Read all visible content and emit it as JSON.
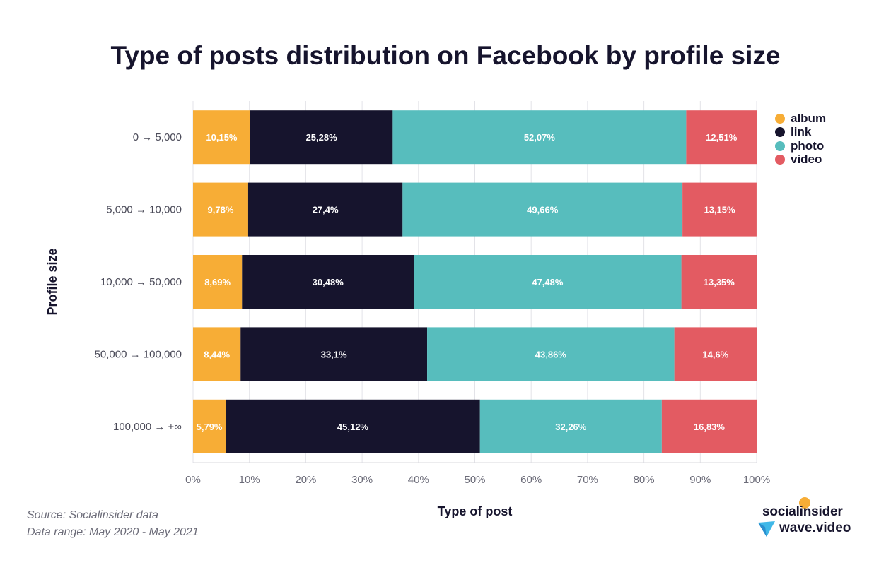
{
  "chart_data": {
    "type": "bar",
    "orientation": "horizontal",
    "stacked": true,
    "title": "Type of posts distribution on Facebook by profile size",
    "xlabel": "Type of post",
    "ylabel": "Profile size",
    "xlim": [
      0,
      100
    ],
    "x_ticks": [
      "0%",
      "10%",
      "20%",
      "30%",
      "40%",
      "50%",
      "60%",
      "70%",
      "80%",
      "90%",
      "100%"
    ],
    "categories": [
      "0 → 5,000",
      "5,000 → 10,000",
      "10,000 → 50,000",
      "50,000 → 100,000",
      "100,000 → +∞"
    ],
    "series": [
      {
        "name": "album",
        "color": "#f7ad36",
        "values": [
          10.15,
          9.78,
          8.69,
          8.44,
          5.79
        ],
        "labels": [
          "10,15%",
          "9,78%",
          "8,69%",
          "8,44%",
          "5,79%"
        ]
      },
      {
        "name": "link",
        "color": "#16142d",
        "values": [
          25.28,
          27.4,
          30.48,
          33.1,
          45.12
        ],
        "labels": [
          "25,28%",
          "27,4%",
          "30,48%",
          "33,1%",
          "45,12%"
        ]
      },
      {
        "name": "photo",
        "color": "#57bdbd",
        "values": [
          52.07,
          49.66,
          47.48,
          43.86,
          32.26
        ],
        "labels": [
          "52,07%",
          "49,66%",
          "47,48%",
          "43,86%",
          "32,26%"
        ]
      },
      {
        "name": "video",
        "color": "#e35b62",
        "values": [
          12.51,
          13.15,
          13.35,
          14.6,
          16.83
        ],
        "labels": [
          "12,51%",
          "13,15%",
          "13,35%",
          "14,6%",
          "16,83%"
        ]
      }
    ],
    "grid": true,
    "legend": "right"
  },
  "source_lines": [
    "Source: Socialinsider data",
    "Data range: May 2020 - May 2021"
  ],
  "logos": {
    "primary": "socialinsider",
    "secondary": "wave.video"
  }
}
